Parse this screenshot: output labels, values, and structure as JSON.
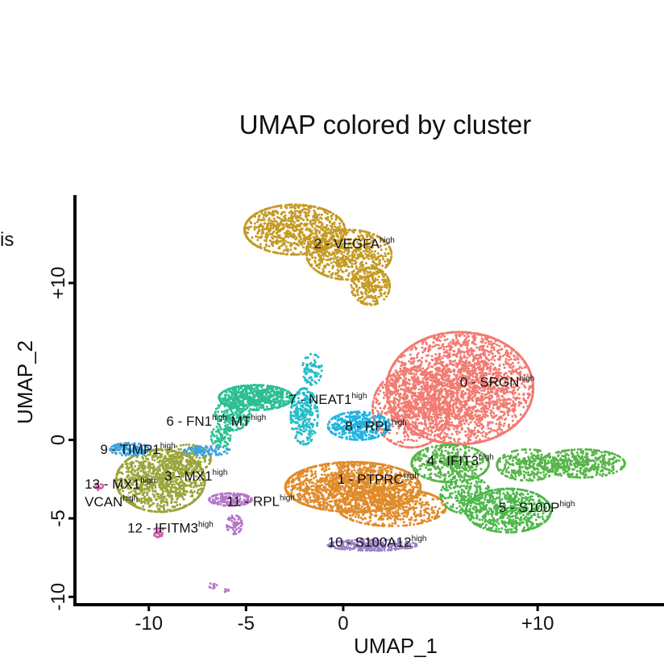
{
  "chart_data": {
    "type": "scatter",
    "title": "UMAP colored by cluster",
    "xlabel": "UMAP_1",
    "ylabel": "UMAP_2",
    "xlim": [
      -13.8,
      16.5
    ],
    "ylim": [
      -10.5,
      15.6
    ],
    "xticks": [
      {
        "value": -10,
        "label": "-10"
      },
      {
        "value": -5,
        "label": "-5"
      },
      {
        "value": 0,
        "label": "0"
      },
      {
        "value": 10,
        "label": "+10"
      }
    ],
    "yticks": [
      {
        "value": -10,
        "label": "-10"
      },
      {
        "value": -5,
        "label": "-5"
      },
      {
        "value": 0,
        "label": "0"
      },
      {
        "value": 10,
        "label": "+10"
      }
    ],
    "grid": false,
    "legend": "none",
    "stray_text": "is",
    "clusters": [
      {
        "id": 0,
        "name": "0 - SRGN",
        "sup": "high",
        "color": "#F27B71",
        "center": [
          6.0,
          2.8
        ],
        "label_at": [
          6.0,
          3.4
        ],
        "blobs": [
          [
            6.0,
            3.3,
            3.8,
            3.6,
            3000
          ],
          [
            3.5,
            2.0,
            2.0,
            2.5,
            700
          ]
        ]
      },
      {
        "id": 1,
        "name": "1 - PTPRC",
        "sup": "high",
        "color": "#E08B2A",
        "center": [
          1.2,
          -3.0
        ],
        "label_at": [
          -0.3,
          -2.8
        ],
        "blobs": [
          [
            0.5,
            -3.0,
            3.5,
            1.6,
            1800
          ],
          [
            2.5,
            -4.3,
            2.8,
            1.2,
            600
          ]
        ]
      },
      {
        "id": 2,
        "name": "2 - VEGFA",
        "sup": "high",
        "color": "#C49A22",
        "center": [
          -1.2,
          11.8
        ],
        "label_at": [
          -1.5,
          12.2
        ],
        "blobs": [
          [
            -2.5,
            13.4,
            2.6,
            1.6,
            900
          ],
          [
            0.3,
            11.8,
            2.2,
            1.6,
            700
          ],
          [
            1.4,
            9.8,
            1.0,
            1.2,
            250
          ]
        ]
      },
      {
        "id": 3,
        "name": "3 - MX1",
        "sup": "high",
        "color": "#9BA53A",
        "center": [
          -9.5,
          -2.5
        ],
        "label_at": [
          -9.2,
          -2.6
        ],
        "blobs": [
          [
            -9.4,
            -2.6,
            2.3,
            2.0,
            1200
          ],
          [
            -8.0,
            -1.2,
            1.2,
            0.9,
            200
          ]
        ]
      },
      {
        "id": 4,
        "name": "4 - IFIT3",
        "sup": "high",
        "color": "#56B548",
        "center": [
          6.2,
          -1.7
        ],
        "label_at": [
          4.3,
          -1.6
        ],
        "blobs": [
          [
            5.5,
            -1.5,
            2.0,
            1.2,
            500
          ],
          [
            9.5,
            -1.6,
            1.6,
            1.0,
            300
          ],
          [
            12.3,
            -1.5,
            2.2,
            0.9,
            450
          ]
        ]
      },
      {
        "id": 5,
        "name": "5 - S100P",
        "sup": "high",
        "color": "#4CB84A",
        "center": [
          8.0,
          -4.2
        ],
        "label_at": [
          8.0,
          -4.6
        ],
        "blobs": [
          [
            8.5,
            -4.5,
            2.2,
            1.4,
            700
          ],
          [
            6.3,
            -3.5,
            1.3,
            1.2,
            250
          ]
        ]
      },
      {
        "id": 6,
        "name": "6 - FN1",
        "sup": "high",
        "name2": "MT",
        "sup2": "high",
        "color": "#2CBF94",
        "center": [
          -5.0,
          1.8
        ],
        "label_at": [
          -9.1,
          0.9
        ],
        "blobs": [
          [
            -4.5,
            2.7,
            1.9,
            0.8,
            700
          ],
          [
            -5.7,
            1.6,
            0.9,
            1.0,
            200
          ],
          [
            -6.3,
            0.2,
            0.5,
            0.7,
            80
          ]
        ]
      },
      {
        "id": 7,
        "name": "7 - NEAT1",
        "sup": "high",
        "color": "#22BDC8",
        "center": [
          -1.8,
          1.5
        ],
        "label_at": [
          -2.8,
          2.3
        ],
        "blobs": [
          [
            -2.0,
            1.5,
            0.7,
            1.8,
            300
          ],
          [
            -1.6,
            4.5,
            0.5,
            1.0,
            80
          ]
        ]
      },
      {
        "id": 8,
        "name": "8 - RPL",
        "sup": "high",
        "color": "#1FB3E2",
        "center": [
          0.8,
          0.8
        ],
        "label_at": [
          0.1,
          0.6
        ],
        "blobs": [
          [
            0.8,
            0.9,
            1.6,
            0.9,
            400
          ]
        ]
      },
      {
        "id": 9,
        "name": "9 - TIMP1",
        "sup": "high",
        "color": "#3BA3DF",
        "center": [
          -11.0,
          -0.6
        ],
        "label_at": [
          -12.5,
          -0.9
        ],
        "blobs": [
          [
            -11.0,
            -0.6,
            1.0,
            0.4,
            150
          ],
          [
            -7.0,
            -0.7,
            1.2,
            0.3,
            100
          ]
        ]
      },
      {
        "id": 10,
        "name": "10 - S100A12",
        "sup": "high",
        "color": "#9A81C7",
        "center": [
          1.5,
          -6.6
        ],
        "label_at": [
          -0.8,
          -6.8
        ],
        "blobs": [
          [
            1.5,
            -6.7,
            2.3,
            0.35,
            300
          ]
        ]
      },
      {
        "id": 11,
        "name": "11 - RPL",
        "sup": "high",
        "color": "#B576C9",
        "center": [
          -5.8,
          -3.9
        ],
        "label_at": [
          -6.0,
          -4.2
        ],
        "blobs": [
          [
            -5.8,
            -3.8,
            1.1,
            0.4,
            180
          ],
          [
            -5.6,
            -5.4,
            0.4,
            0.6,
            60
          ],
          [
            -6.7,
            -9.3,
            0.2,
            0.2,
            12
          ],
          [
            -6.0,
            -9.6,
            0.15,
            0.1,
            6
          ]
        ]
      },
      {
        "id": 12,
        "name": "12 - IFITM3",
        "sup": "high",
        "color": "#D35EA9",
        "center": [
          -9.5,
          -5.9
        ],
        "label_at": [
          -11.1,
          -5.9
        ],
        "blobs": [
          [
            -9.5,
            -5.9,
            0.3,
            0.3,
            25
          ]
        ]
      },
      {
        "id": 13,
        "name": "13 - MX1",
        "sup": "high",
        "name2": "VCAN",
        "sup2": "high",
        "color": "#E062A8",
        "center": [
          -12.6,
          -3.0
        ],
        "label_at": [
          -13.3,
          -3.1
        ],
        "blobs": [
          [
            -12.6,
            -3.0,
            0.3,
            0.2,
            15
          ]
        ]
      }
    ]
  }
}
